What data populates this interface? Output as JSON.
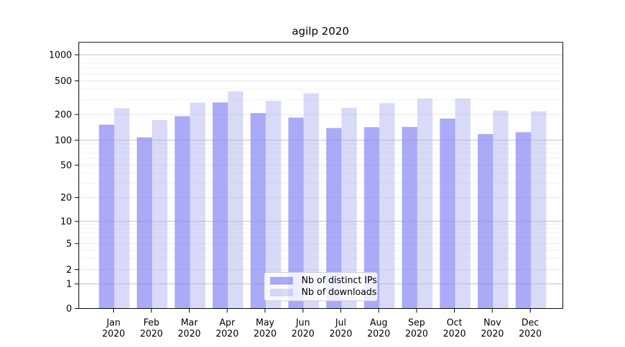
{
  "chart_data": {
    "type": "bar",
    "title": "agilp 2020",
    "categories": [
      "Jan",
      "Feb",
      "Mar",
      "Apr",
      "May",
      "Jun",
      "Jul",
      "Aug",
      "Sep",
      "Oct",
      "Nov",
      "Dec"
    ],
    "category_year": "2020",
    "series": [
      {
        "name": "Nb of distinct IPs",
        "color": "rgba(130,130,242,0.68)",
        "values": [
          152,
          108,
          191,
          278,
          208,
          184,
          139,
          142,
          143,
          179,
          118,
          124
        ]
      },
      {
        "name": "Nb of downloads",
        "color": "rgba(170,170,240,0.45)",
        "values": [
          237,
          172,
          277,
          375,
          290,
          356,
          240,
          272,
          308,
          308,
          222,
          218
        ]
      }
    ],
    "y_axis": {
      "scale": "symlog",
      "ticks": [
        0,
        1,
        2,
        5,
        10,
        20,
        50,
        100,
        200,
        500,
        1000
      ],
      "major_gridlines": [
        1,
        10,
        100,
        1000
      ],
      "mid_gridlines": [
        2,
        5,
        20,
        50,
        200,
        500
      ],
      "minor_gridlines": [
        3,
        4,
        6,
        7,
        8,
        9,
        30,
        40,
        60,
        70,
        80,
        90,
        300,
        400,
        600,
        700,
        800,
        900
      ],
      "ylim": [
        0,
        1400
      ]
    },
    "xlabel": "",
    "ylabel": "",
    "grid": true,
    "legend_position": "lower center"
  }
}
